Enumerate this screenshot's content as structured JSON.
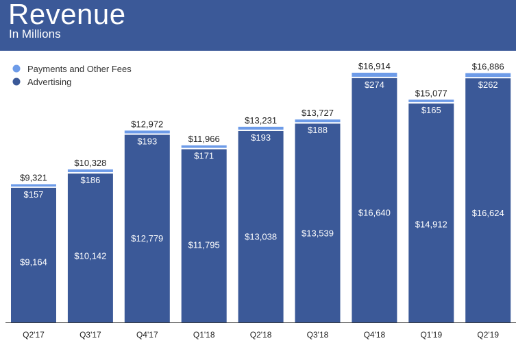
{
  "header": {
    "title": "Revenue",
    "subtitle": "In Millions"
  },
  "legend": [
    {
      "label": "Payments and Other Fees",
      "color": "#6d9be8"
    },
    {
      "label": "Advertising",
      "color": "#3b5998"
    }
  ],
  "colors": {
    "header_bg": "#3b5998",
    "advertising": "#3b5998",
    "payments": "#6d9be8",
    "axis": "#333333"
  },
  "chart_data": {
    "type": "bar",
    "stacked": true,
    "title": "Revenue",
    "subtitle": "In Millions",
    "xlabel": "",
    "ylabel": "",
    "ylim": [
      0,
      17500
    ],
    "categories": [
      "Q2'17",
      "Q3'17",
      "Q4'17",
      "Q1'18",
      "Q2'18",
      "Q3'18",
      "Q4'18",
      "Q1'19",
      "Q2'19"
    ],
    "series": [
      {
        "name": "Advertising",
        "values": [
          9164,
          10142,
          12779,
          11795,
          13038,
          13539,
          16640,
          14912,
          16624
        ]
      },
      {
        "name": "Payments and Other Fees",
        "values": [
          157,
          186,
          193,
          171,
          193,
          188,
          274,
          165,
          262
        ]
      }
    ],
    "series_labels": [
      [
        "$9,164",
        "$10,142",
        "$12,779",
        "$11,795",
        "$13,038",
        "$13,539",
        "$16,640",
        "$14,912",
        "$16,624"
      ],
      [
        "$157",
        "$186",
        "$193",
        "$171",
        "$193",
        "$188",
        "$274",
        "$165",
        "$262"
      ]
    ],
    "totals": [
      9321,
      10328,
      12972,
      11966,
      13231,
      13727,
      16914,
      15077,
      16886
    ],
    "total_labels": [
      "$9,321",
      "$10,328",
      "$12,972",
      "$11,966",
      "$13,231",
      "$13,727",
      "$16,914",
      "$15,077",
      "$16,886"
    ],
    "legend_position": "top-left",
    "grid": false
  }
}
